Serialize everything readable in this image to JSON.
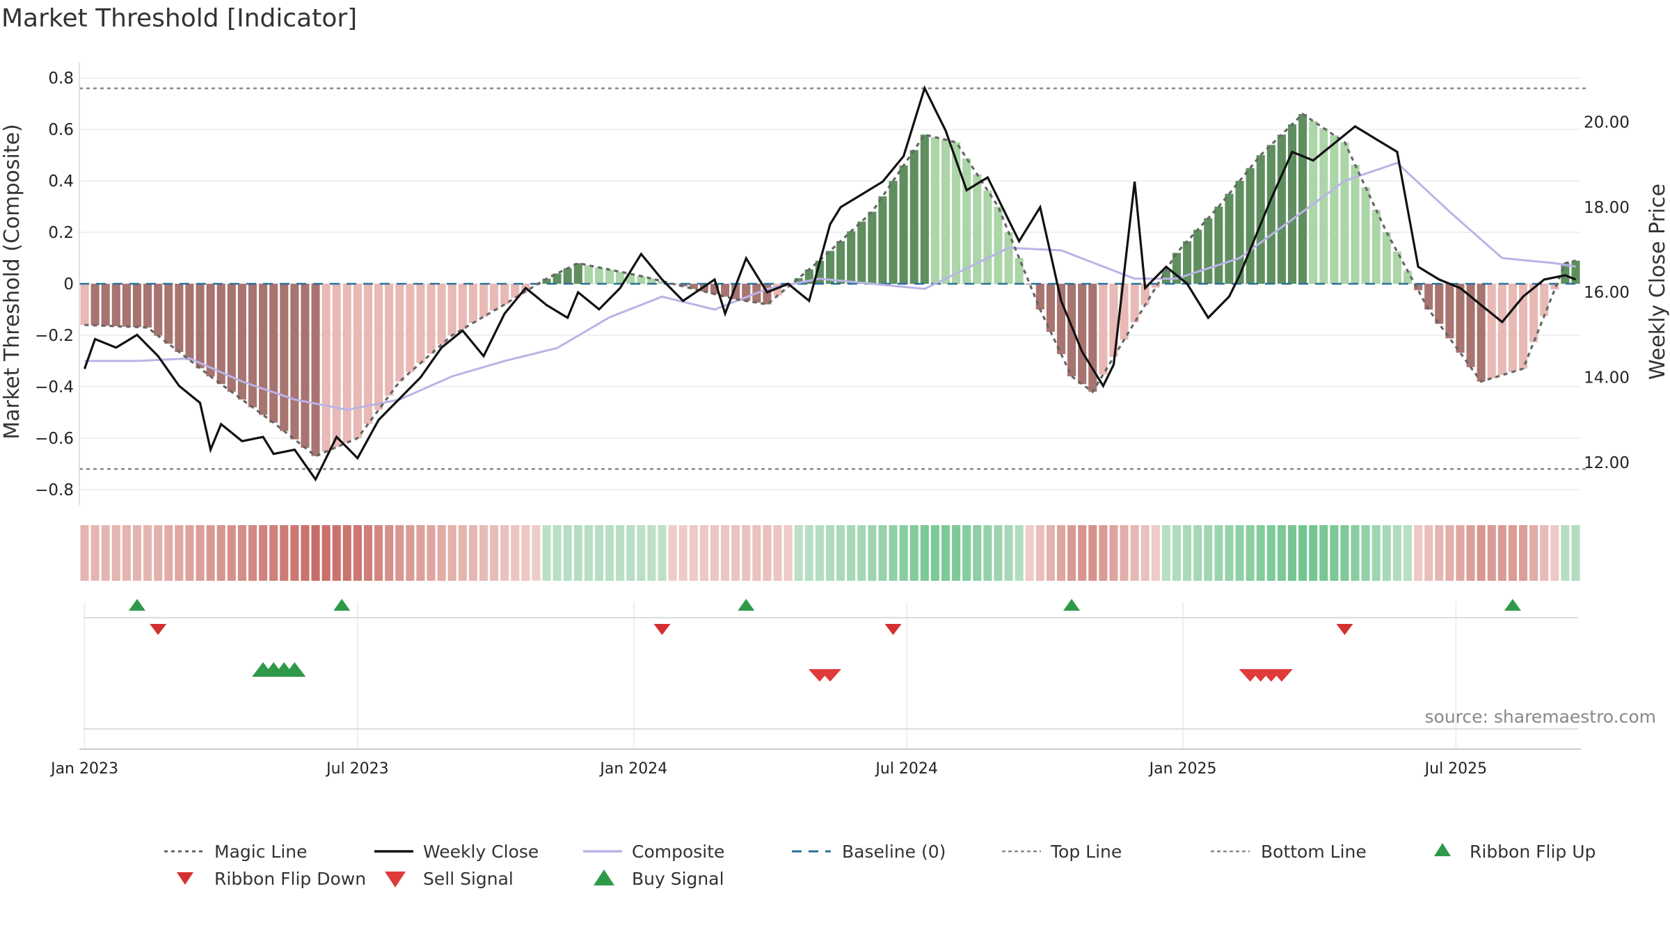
{
  "chart_data": {
    "type": "bar",
    "title": "Market Threshold [Indicator]",
    "ylabel_left": "Market Threshold (Composite)",
    "ylabel_right": "Weekly Close Price",
    "ylim_left": [
      -0.86,
      0.86
    ],
    "ylim_right": [
      11.0,
      21.4
    ],
    "yticks_left": [
      "0.8",
      "0.6",
      "0.4",
      "0.2",
      "0",
      "−0.2",
      "−0.4",
      "−0.6",
      "−0.8"
    ],
    "yticks_left_values": [
      0.8,
      0.6,
      0.4,
      0.2,
      0,
      -0.2,
      -0.4,
      -0.6,
      -0.8
    ],
    "yticks_right": [
      "20.00",
      "18.00",
      "16.00",
      "14.00",
      "12.00"
    ],
    "yticks_right_values": [
      20,
      18,
      16,
      14,
      12
    ],
    "x_ticks": [
      "Jan 2023",
      "Jul 2023",
      "Jan 2024",
      "Jul 2024",
      "Jan 2025",
      "Jul 2025"
    ],
    "x_tick_weeks": [
      0,
      26,
      52.3,
      78.3,
      104.6,
      130.6
    ],
    "weeks_count": 143,
    "top_line": 0.76,
    "bottom_line": -0.72,
    "source": "source: sharemaestro.com",
    "composite_keypoints": [
      [
        0,
        -0.3
      ],
      [
        5,
        -0.3
      ],
      [
        10,
        -0.29
      ],
      [
        15,
        -0.38
      ],
      [
        20,
        -0.45
      ],
      [
        25,
        -0.49
      ],
      [
        30,
        -0.45
      ],
      [
        35,
        -0.36
      ],
      [
        40,
        -0.3
      ],
      [
        45,
        -0.25
      ],
      [
        50,
        -0.13
      ],
      [
        55,
        -0.05
      ],
      [
        60,
        -0.1
      ],
      [
        65,
        -0.02
      ],
      [
        70,
        0.02
      ],
      [
        80,
        -0.02
      ],
      [
        88,
        0.14
      ],
      [
        93,
        0.13
      ],
      [
        100,
        0.02
      ],
      [
        104,
        0.02
      ],
      [
        110,
        0.1
      ],
      [
        115,
        0.25
      ],
      [
        120,
        0.4
      ],
      [
        125,
        0.47
      ],
      [
        130,
        0.28
      ],
      [
        135,
        0.1
      ],
      [
        140,
        0.08
      ],
      [
        143,
        0.06
      ]
    ],
    "magic_keypoints": [
      [
        0,
        -0.16
      ],
      [
        6,
        -0.17
      ],
      [
        12,
        -0.36
      ],
      [
        18,
        -0.54
      ],
      [
        22,
        -0.67
      ],
      [
        26,
        -0.6
      ],
      [
        30,
        -0.38
      ],
      [
        35,
        -0.2
      ],
      [
        40,
        -0.08
      ],
      [
        44,
        0.02
      ],
      [
        47,
        0.08
      ],
      [
        53,
        0.03
      ],
      [
        58,
        -0.02
      ],
      [
        62,
        -0.06
      ],
      [
        65,
        -0.08
      ],
      [
        70,
        0.09
      ],
      [
        75,
        0.28
      ],
      [
        80,
        0.58
      ],
      [
        83,
        0.55
      ],
      [
        87,
        0.3
      ],
      [
        91,
        -0.1
      ],
      [
        94,
        -0.36
      ],
      [
        96,
        -0.42
      ],
      [
        100,
        -0.15
      ],
      [
        104,
        0.12
      ],
      [
        108,
        0.3
      ],
      [
        112,
        0.5
      ],
      [
        116,
        0.66
      ],
      [
        120,
        0.55
      ],
      [
        124,
        0.2
      ],
      [
        128,
        -0.1
      ],
      [
        133,
        -0.38
      ],
      [
        137,
        -0.33
      ],
      [
        141,
        0.08
      ],
      [
        143,
        0.1
      ]
    ],
    "price_keypoints": [
      [
        0,
        14.2
      ],
      [
        1,
        14.9
      ],
      [
        3,
        14.7
      ],
      [
        5,
        15.0
      ],
      [
        7,
        14.5
      ],
      [
        9,
        13.8
      ],
      [
        11,
        13.4
      ],
      [
        12,
        12.3
      ],
      [
        13,
        12.9
      ],
      [
        15,
        12.5
      ],
      [
        17,
        12.6
      ],
      [
        18,
        12.2
      ],
      [
        20,
        12.3
      ],
      [
        22,
        11.6
      ],
      [
        24,
        12.6
      ],
      [
        26,
        12.1
      ],
      [
        28,
        13.0
      ],
      [
        30,
        13.5
      ],
      [
        32,
        14.0
      ],
      [
        34,
        14.7
      ],
      [
        36,
        15.1
      ],
      [
        38,
        14.5
      ],
      [
        40,
        15.5
      ],
      [
        42,
        16.1
      ],
      [
        44,
        15.7
      ],
      [
        46,
        15.4
      ],
      [
        47,
        16.0
      ],
      [
        49,
        15.6
      ],
      [
        51,
        16.1
      ],
      [
        53,
        16.9
      ],
      [
        55,
        16.3
      ],
      [
        57,
        15.8
      ],
      [
        60,
        16.3
      ],
      [
        61,
        15.5
      ],
      [
        63,
        16.8
      ],
      [
        65,
        16.0
      ],
      [
        67,
        16.2
      ],
      [
        69,
        15.8
      ],
      [
        71,
        17.6
      ],
      [
        72,
        18.0
      ],
      [
        74,
        18.3
      ],
      [
        76,
        18.6
      ],
      [
        78,
        19.2
      ],
      [
        80,
        20.8
      ],
      [
        82,
        19.8
      ],
      [
        84,
        18.4
      ],
      [
        86,
        18.7
      ],
      [
        87,
        18.2
      ],
      [
        89,
        17.2
      ],
      [
        91,
        18.0
      ],
      [
        93,
        15.8
      ],
      [
        95,
        14.6
      ],
      [
        97,
        13.8
      ],
      [
        98,
        14.3
      ],
      [
        100,
        18.6
      ],
      [
        101,
        16.1
      ],
      [
        103,
        16.6
      ],
      [
        105,
        16.2
      ],
      [
        107,
        15.4
      ],
      [
        109,
        15.9
      ],
      [
        110,
        16.4
      ],
      [
        113,
        18.2
      ],
      [
        115,
        19.3
      ],
      [
        117,
        19.1
      ],
      [
        119,
        19.5
      ],
      [
        121,
        19.9
      ],
      [
        123,
        19.6
      ],
      [
        125,
        19.3
      ],
      [
        127,
        16.6
      ],
      [
        129,
        16.3
      ],
      [
        131,
        16.1
      ],
      [
        133,
        15.7
      ],
      [
        135,
        15.3
      ],
      [
        137,
        15.9
      ],
      [
        139,
        16.3
      ],
      [
        141,
        16.4
      ],
      [
        143,
        16.2
      ]
    ]
  },
  "legend": {
    "magic_line": "Magic Line",
    "weekly_close": "Weekly Close",
    "composite": "Composite",
    "baseline": "Baseline (0)",
    "top_line": "Top Line",
    "bottom_line": "Bottom Line",
    "ribbon_flip_up": "Ribbon Flip Up",
    "ribbon_flip_down": "Ribbon Flip Down",
    "sell_signal": "Sell Signal",
    "buy_signal": "Buy Signal"
  },
  "colors": {
    "weekly_close": "#111111",
    "composite": "#b9b4e6",
    "magic_line": "#666666",
    "baseline": "#2a7099",
    "top_bottom_line": "#888888",
    "bar_strong_green": "#5f8f5f",
    "bar_light_green": "#acd5a8",
    "bar_strong_red": "#a87470",
    "bar_light_red": "#e8b9b5",
    "bar_extreme": "#f7c000",
    "flip_up": "#2e9a49",
    "flip_down": "#d43030",
    "sell": "#e03a3a",
    "buy": "#2e9a49"
  },
  "signals": {
    "ribbon_flip_up_weeks": [
      5,
      24.5,
      63,
      94,
      136
    ],
    "ribbon_flip_down_weeks": [
      7,
      55,
      77,
      120
    ],
    "buy_signal_weeks": [
      17,
      18,
      19,
      20
    ],
    "sell_signal_weeks": [
      70,
      71,
      111,
      112,
      113,
      114
    ]
  }
}
